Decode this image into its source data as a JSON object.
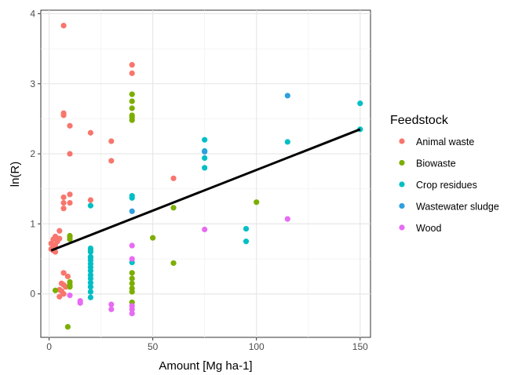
{
  "chart_data": {
    "type": "scatter",
    "xlabel": "Amount [Mg ha-1]",
    "ylabel": "ln(R)",
    "xlim": [
      -4,
      155
    ],
    "ylim": [
      -0.62,
      4.05
    ],
    "x_ticks": [
      0,
      50,
      100,
      150
    ],
    "y_ticks": [
      0,
      1,
      2,
      3,
      4
    ],
    "grid": true,
    "legend_title": "Feedstock",
    "legend_position": "right",
    "series": [
      {
        "name": "Animal waste",
        "color": "#F8766D",
        "points": [
          [
            7,
            3.83
          ],
          [
            7,
            2.58
          ],
          [
            7,
            2.55
          ],
          [
            10,
            2.4
          ],
          [
            20,
            2.3
          ],
          [
            30,
            2.18
          ],
          [
            10,
            2.0
          ],
          [
            30,
            1.9
          ],
          [
            10,
            1.42
          ],
          [
            7,
            1.38
          ],
          [
            20,
            1.34
          ],
          [
            7,
            1.3
          ],
          [
            10,
            1.3
          ],
          [
            7,
            1.22
          ],
          [
            60,
            1.65
          ],
          [
            40,
            3.27
          ],
          [
            40,
            3.15
          ],
          [
            5,
            0.9
          ],
          [
            10,
            0.8
          ],
          [
            3,
            0.82
          ],
          [
            5,
            0.79
          ],
          [
            2,
            0.78
          ],
          [
            4,
            0.75
          ],
          [
            1,
            0.72
          ],
          [
            3,
            0.7
          ],
          [
            2,
            0.66
          ],
          [
            1,
            0.64
          ],
          [
            2,
            0.62
          ],
          [
            3,
            0.6
          ],
          [
            7,
            0.3
          ],
          [
            9,
            0.25
          ],
          [
            6,
            0.15
          ],
          [
            7,
            0.13
          ],
          [
            8,
            0.1
          ],
          [
            5,
            0.06
          ],
          [
            6,
            0.04
          ],
          [
            7,
            0.0
          ],
          [
            5,
            -0.04
          ]
        ]
      },
      {
        "name": "Biowaste",
        "color": "#7CAE00",
        "points": [
          [
            40,
            2.85
          ],
          [
            40,
            2.75
          ],
          [
            40,
            2.65
          ],
          [
            40,
            2.55
          ],
          [
            40,
            2.52
          ],
          [
            40,
            2.48
          ],
          [
            100,
            1.31
          ],
          [
            60,
            1.23
          ],
          [
            50,
            0.8
          ],
          [
            60,
            0.44
          ],
          [
            10,
            0.83
          ],
          [
            10,
            0.78
          ],
          [
            20,
            0.62
          ],
          [
            20,
            0.52
          ],
          [
            10,
            0.17
          ],
          [
            10,
            0.13
          ],
          [
            10,
            0.1
          ],
          [
            3,
            0.05
          ],
          [
            40,
            0.3
          ],
          [
            40,
            0.22
          ],
          [
            40,
            0.15
          ],
          [
            40,
            0.08
          ],
          [
            40,
            0.03
          ],
          [
            40,
            -0.12
          ],
          [
            9,
            -0.47
          ]
        ]
      },
      {
        "name": "Crop residues",
        "color": "#00BFC4",
        "points": [
          [
            150,
            2.72
          ],
          [
            150,
            2.35
          ],
          [
            115,
            2.17
          ],
          [
            75,
            2.2
          ],
          [
            75,
            2.04
          ],
          [
            75,
            1.94
          ],
          [
            75,
            1.8
          ],
          [
            40,
            1.4
          ],
          [
            40,
            1.37
          ],
          [
            20,
            1.26
          ],
          [
            95,
            0.93
          ],
          [
            95,
            0.75
          ],
          [
            20,
            0.65
          ],
          [
            20,
            0.6
          ],
          [
            20,
            0.53
          ],
          [
            20,
            0.48
          ],
          [
            20,
            0.43
          ],
          [
            20,
            0.38
          ],
          [
            20,
            0.33
          ],
          [
            20,
            0.27
          ],
          [
            20,
            0.22
          ],
          [
            20,
            0.16
          ],
          [
            20,
            0.1
          ],
          [
            20,
            0.03
          ],
          [
            20,
            -0.05
          ],
          [
            40,
            0.45
          ]
        ]
      },
      {
        "name": "Wastewater sludge",
        "color": "#2E9FDF",
        "points": [
          [
            115,
            2.83
          ],
          [
            75,
            2.03
          ],
          [
            40,
            1.18
          ]
        ]
      },
      {
        "name": "Wood",
        "color": "#E76BF3",
        "points": [
          [
            115,
            1.07
          ],
          [
            75,
            0.92
          ],
          [
            40,
            0.69
          ],
          [
            40,
            0.5
          ],
          [
            40,
            -0.17
          ],
          [
            40,
            -0.22
          ],
          [
            40,
            -0.28
          ],
          [
            30,
            -0.15
          ],
          [
            30,
            -0.22
          ],
          [
            15,
            -0.1
          ],
          [
            15,
            -0.13
          ],
          [
            10,
            -0.02
          ]
        ]
      }
    ],
    "fit_line": {
      "x": [
        1,
        150
      ],
      "y": [
        0.62,
        2.35
      ],
      "color": "#000000"
    }
  }
}
